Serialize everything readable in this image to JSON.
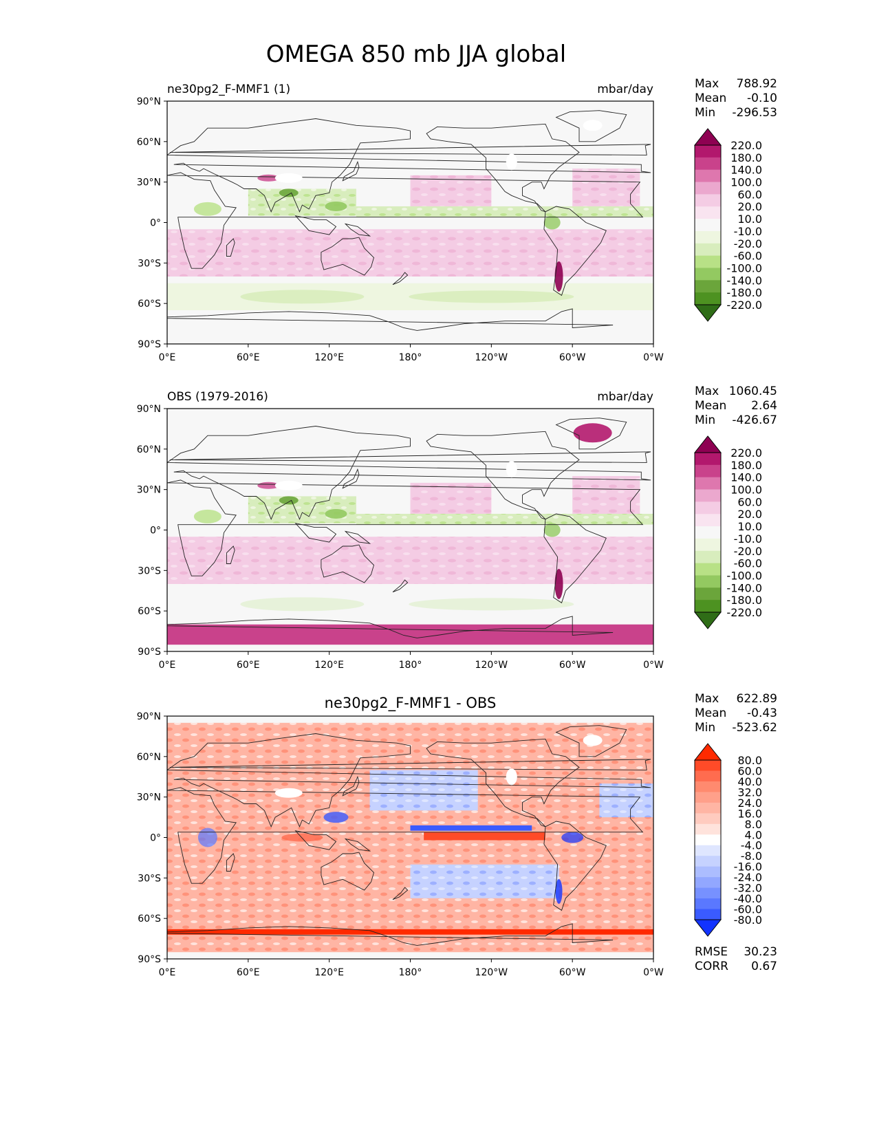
{
  "figure": {
    "title": "OMEGA 850 mb JJA global",
    "lon_ticks": [
      "0°E",
      "60°E",
      "120°E",
      "180°",
      "120°W",
      "60°W",
      "0°W"
    ],
    "lat_ticks": [
      "90°N",
      "60°N",
      "30°N",
      "0°",
      "30°S",
      "60°S",
      "90°S"
    ],
    "stat_labels": {
      "max": "Max",
      "mean": "Mean",
      "min": "Min",
      "rmse": "RMSE",
      "corr": "CORR"
    }
  },
  "colors": {
    "land_no_data": "#ffffff",
    "background": "#f7f7f7",
    "coastline": "#222222"
  },
  "panels": [
    {
      "id": "test",
      "left_title": "ne30pg2_F-MMF1 (1)",
      "center_title": "",
      "right_title": "mbar/day",
      "stats": {
        "max": "788.92",
        "mean": "-0.10",
        "min": "-296.53"
      },
      "colorbar": {
        "levels": [
          "220.0",
          "180.0",
          "140.0",
          "100.0",
          "60.0",
          "20.0",
          "10.0",
          "-10.0",
          "-20.0",
          "-60.0",
          "-100.0",
          "-140.0",
          "-180.0",
          "-220.0"
        ],
        "colors": [
          "#8e0152",
          "#b2186d",
          "#c9428b",
          "#de77ae",
          "#eba8ce",
          "#f4cce4",
          "#f9e4f0",
          "#f7f7f7",
          "#eef6e0",
          "#d8edbd",
          "#b8e186",
          "#93c961",
          "#6ba53b",
          "#4d9221",
          "#2f6d17"
        ]
      }
    },
    {
      "id": "ref",
      "left_title": "OBS (1979-2016)",
      "center_title": "",
      "right_title": "mbar/day",
      "stats": {
        "max": "1060.45",
        "mean": "2.64",
        "min": "-426.67"
      },
      "colorbar": {
        "levels": [
          "220.0",
          "180.0",
          "140.0",
          "100.0",
          "60.0",
          "20.0",
          "10.0",
          "-10.0",
          "-20.0",
          "-60.0",
          "-100.0",
          "-140.0",
          "-180.0",
          "-220.0"
        ],
        "colors": [
          "#8e0152",
          "#b2186d",
          "#c9428b",
          "#de77ae",
          "#eba8ce",
          "#f4cce4",
          "#f9e4f0",
          "#f7f7f7",
          "#eef6e0",
          "#d8edbd",
          "#b8e186",
          "#93c961",
          "#6ba53b",
          "#4d9221",
          "#2f6d17"
        ]
      }
    },
    {
      "id": "diff",
      "left_title": "",
      "center_title": "ne30pg2_F-MMF1 - OBS",
      "right_title": "",
      "stats": {
        "max": "622.89",
        "mean": "-0.43",
        "min": "-523.62",
        "rmse": "30.23",
        "corr": "0.67"
      },
      "colorbar": {
        "levels": [
          "80.0",
          "60.0",
          "40.0",
          "32.0",
          "24.0",
          "16.0",
          "8.0",
          "4.0",
          "-4.0",
          "-8.0",
          "-16.0",
          "-24.0",
          "-32.0",
          "-40.0",
          "-60.0",
          "-80.0"
        ],
        "colors": [
          "#ff2a00",
          "#ff4b28",
          "#ff6c4f",
          "#ff8a6f",
          "#ffa08a",
          "#ffb5a4",
          "#ffcbbf",
          "#ffe3dc",
          "#ffffff",
          "#dfe6ff",
          "#c6d2ff",
          "#acbdff",
          "#92a7ff",
          "#7791ff",
          "#5a78ff",
          "#3a5bff",
          "#1233ff"
        ]
      }
    }
  ]
}
